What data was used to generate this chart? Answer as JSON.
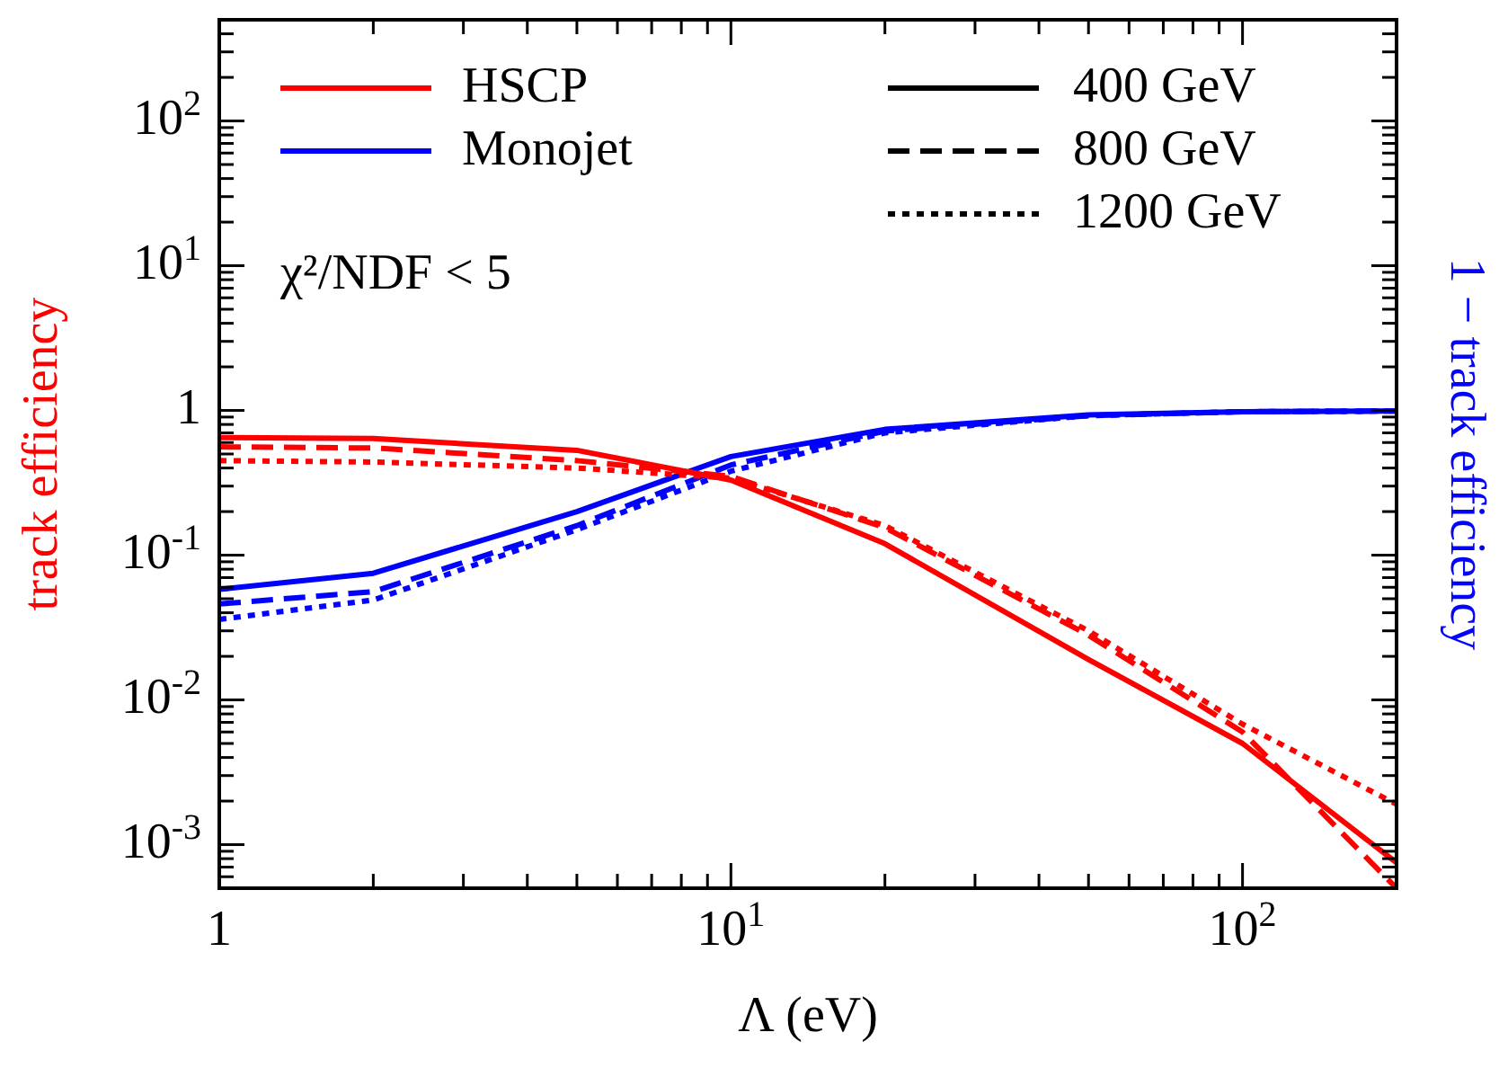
{
  "chart_data": {
    "type": "line",
    "xlabel": "Λ (eV)",
    "ylabel": "track efficiency",
    "y2label": "1 − track efficiency",
    "log": "xy",
    "xlim": [
      1,
      200
    ],
    "ylim": [
      0.0005,
      500
    ],
    "xticks": [
      1,
      {
        "value": 10,
        "label": "10$^{1}$"
      },
      {
        "value": 100,
        "label": "10$^{2}$"
      }
    ],
    "yticks": [
      {
        "value": 0.001,
        "label": "10$^{-3}$"
      },
      {
        "value": 0.01,
        "label": "10$^{-2}$"
      },
      {
        "value": 0.1,
        "label": "10$^{-1}$"
      },
      1,
      {
        "value": 10,
        "label": "10$^{1}$"
      },
      {
        "value": 100,
        "label": "10$^{2}$"
      }
    ],
    "x": [
      1,
      2,
      5,
      10,
      20,
      50,
      100,
      200
    ],
    "series": [
      {
        "name": "HSCP",
        "color": "#ff0000",
        "line_style": "solid",
        "values": [
          0.65,
          0.64,
          0.53,
          0.33,
          0.12,
          0.019,
          0.005,
          0.00075
        ]
      },
      {
        "color": "#fe0101",
        "line_style": "dashed",
        "values": [
          0.56,
          0.55,
          0.45,
          0.35,
          0.155,
          0.028,
          0.006,
          0.0005
        ]
      },
      {
        "color": "#fd0202",
        "line_style": "dotted",
        "values": [
          0.45,
          0.44,
          0.4,
          0.34,
          0.16,
          0.03,
          0.0068,
          0.0019
        ]
      },
      {
        "name": "Monojet",
        "color": "#0000ff",
        "line_style": "solid",
        "values": [
          0.058,
          0.075,
          0.2,
          0.48,
          0.74,
          0.93,
          0.98,
          0.99
        ]
      },
      {
        "color": "#0101fe",
        "line_style": "dashed",
        "values": [
          0.046,
          0.056,
          0.16,
          0.42,
          0.72,
          0.92,
          0.98,
          0.99
        ]
      },
      {
        "color": "#0202fd",
        "line_style": "dotted",
        "values": [
          0.036,
          0.049,
          0.15,
          0.38,
          0.7,
          0.92,
          0.98,
          0.99
        ]
      }
    ],
    "annotations": [
      "400 GeV",
      "800 GeV",
      "1200 GeV",
      "χ²/NDF < 5"
    ],
    "legend": "top left",
    "grid": false,
    "marker": "none"
  }
}
